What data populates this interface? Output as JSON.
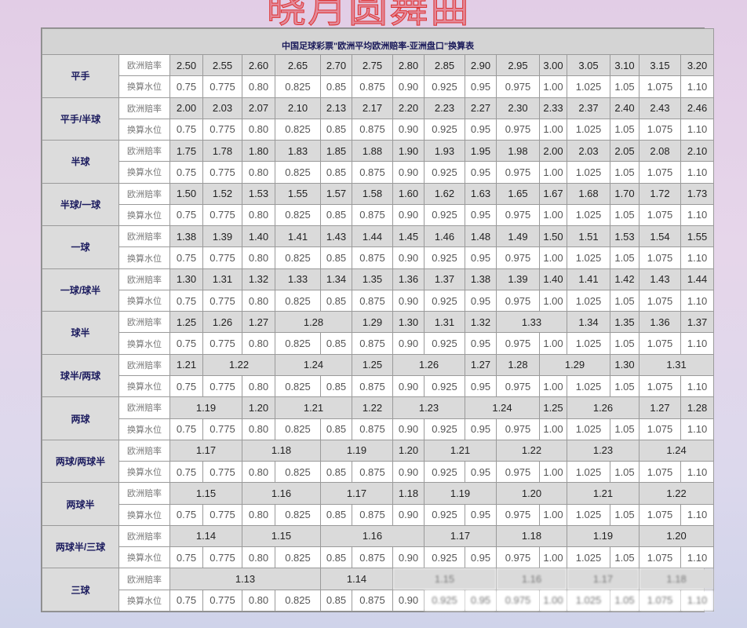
{
  "watermark": "晓月圆舞曲",
  "title": "中国足球彩票\"欧洲平均欧洲赔率-亚洲盘口\"换算表",
  "row_labels": {
    "odds": "欧洲赔率",
    "water": "换算水位"
  },
  "water_values": [
    "0.75",
    "0.775",
    "0.80",
    "0.825",
    "0.85",
    "0.875",
    "0.90",
    "0.925",
    "0.95",
    "0.975",
    "1.00",
    "1.025",
    "1.05",
    "1.075",
    "1.10"
  ],
  "groups": [
    {
      "handicap": "平手",
      "odds": [
        [
          "2.50",
          1
        ],
        [
          "2.55",
          1
        ],
        [
          "2.60",
          1
        ],
        [
          "2.65",
          1
        ],
        [
          "2.70",
          1
        ],
        [
          "2.75",
          1
        ],
        [
          "2.80",
          1
        ],
        [
          "2.85",
          1
        ],
        [
          "2.90",
          1
        ],
        [
          "2.95",
          1
        ],
        [
          "3.00",
          1
        ],
        [
          "3.05",
          1
        ],
        [
          "3.10",
          1
        ],
        [
          "3.15",
          1
        ],
        [
          "3.20",
          1
        ]
      ]
    },
    {
      "handicap": "平手/半球",
      "odds": [
        [
          "2.00",
          1
        ],
        [
          "2.03",
          1
        ],
        [
          "2.07",
          1
        ],
        [
          "2.10",
          1
        ],
        [
          "2.13",
          1
        ],
        [
          "2.17",
          1
        ],
        [
          "2.20",
          1
        ],
        [
          "2.23",
          1
        ],
        [
          "2.27",
          1
        ],
        [
          "2.30",
          1
        ],
        [
          "2.33",
          1
        ],
        [
          "2.37",
          1
        ],
        [
          "2.40",
          1
        ],
        [
          "2.43",
          1
        ],
        [
          "2.46",
          1
        ]
      ]
    },
    {
      "handicap": "半球",
      "odds": [
        [
          "1.75",
          1
        ],
        [
          "1.78",
          1
        ],
        [
          "1.80",
          1
        ],
        [
          "1.83",
          1
        ],
        [
          "1.85",
          1
        ],
        [
          "1.88",
          1
        ],
        [
          "1.90",
          1
        ],
        [
          "1.93",
          1
        ],
        [
          "1.95",
          1
        ],
        [
          "1.98",
          1
        ],
        [
          "2.00",
          1
        ],
        [
          "2.03",
          1
        ],
        [
          "2.05",
          1
        ],
        [
          "2.08",
          1
        ],
        [
          "2.10",
          1
        ]
      ]
    },
    {
      "handicap": "半球/一球",
      "odds": [
        [
          "1.50",
          1
        ],
        [
          "1.52",
          1
        ],
        [
          "1.53",
          1
        ],
        [
          "1.55",
          1
        ],
        [
          "1.57",
          1
        ],
        [
          "1.58",
          1
        ],
        [
          "1.60",
          1
        ],
        [
          "1.62",
          1
        ],
        [
          "1.63",
          1
        ],
        [
          "1.65",
          1
        ],
        [
          "1.67",
          1
        ],
        [
          "1.68",
          1
        ],
        [
          "1.70",
          1
        ],
        [
          "1.72",
          1
        ],
        [
          "1.73",
          1
        ]
      ]
    },
    {
      "handicap": "一球",
      "odds": [
        [
          "1.38",
          1
        ],
        [
          "1.39",
          1
        ],
        [
          "1.40",
          1
        ],
        [
          "1.41",
          1
        ],
        [
          "1.43",
          1
        ],
        [
          "1.44",
          1
        ],
        [
          "1.45",
          1
        ],
        [
          "1.46",
          1
        ],
        [
          "1.48",
          1
        ],
        [
          "1.49",
          1
        ],
        [
          "1.50",
          1
        ],
        [
          "1.51",
          1
        ],
        [
          "1.53",
          1
        ],
        [
          "1.54",
          1
        ],
        [
          "1.55",
          1
        ]
      ]
    },
    {
      "handicap": "一球/球半",
      "odds": [
        [
          "1.30",
          1
        ],
        [
          "1.31",
          1
        ],
        [
          "1.32",
          1
        ],
        [
          "1.33",
          1
        ],
        [
          "1.34",
          1
        ],
        [
          "1.35",
          1
        ],
        [
          "1.36",
          1
        ],
        [
          "1.37",
          1
        ],
        [
          "1.38",
          1
        ],
        [
          "1.39",
          1
        ],
        [
          "1.40",
          1
        ],
        [
          "1.41",
          1
        ],
        [
          "1.42",
          1
        ],
        [
          "1.43",
          1
        ],
        [
          "1.44",
          1
        ]
      ]
    },
    {
      "handicap": "球半",
      "odds": [
        [
          "1.25",
          1
        ],
        [
          "1.26",
          1
        ],
        [
          "1.27",
          1
        ],
        [
          "1.28",
          2
        ],
        [
          "1.29",
          1
        ],
        [
          "1.30",
          1
        ],
        [
          "1.31",
          1
        ],
        [
          "1.32",
          1
        ],
        [
          "1.33",
          2
        ],
        [
          "1.34",
          1
        ],
        [
          "1.35",
          1
        ],
        [
          "1.36",
          1
        ],
        [
          "1.37",
          1
        ]
      ]
    },
    {
      "handicap": "球半/两球",
      "odds": [
        [
          "1.21",
          1
        ],
        [
          "1.22",
          2
        ],
        [
          "1.24",
          2
        ],
        [
          "1.25",
          1
        ],
        [
          "1.26",
          2
        ],
        [
          "1.27",
          1
        ],
        [
          "1.28",
          1
        ],
        [
          "1.29",
          2
        ],
        [
          "1.30",
          1
        ],
        [
          "1.31",
          2
        ]
      ]
    },
    {
      "handicap": "两球",
      "odds": [
        [
          "1.19",
          2
        ],
        [
          "1.20",
          1
        ],
        [
          "1.21",
          2
        ],
        [
          "1.22",
          1
        ],
        [
          "1.23",
          2
        ],
        [
          "1.24",
          2
        ],
        [
          "1.25",
          1
        ],
        [
          "1.26",
          2
        ],
        [
          "1.27",
          1
        ],
        [
          "1.28",
          1
        ]
      ]
    },
    {
      "handicap": "两球/两球半",
      "odds": [
        [
          "1.17",
          2
        ],
        [
          "1.18",
          2
        ],
        [
          "1.19",
          2
        ],
        [
          "1.20",
          1
        ],
        [
          "1.21",
          2
        ],
        [
          "1.22",
          2
        ],
        [
          "1.23",
          2
        ],
        [
          "1.24",
          2
        ]
      ]
    },
    {
      "handicap": "两球半",
      "odds": [
        [
          "1.15",
          2
        ],
        [
          "1.16",
          2
        ],
        [
          "1.17",
          2
        ],
        [
          "1.18",
          1
        ],
        [
          "1.19",
          2
        ],
        [
          "1.20",
          2
        ],
        [
          "1.21",
          2
        ],
        [
          "1.22",
          2
        ]
      ]
    },
    {
      "handicap": "两球半/三球",
      "odds": [
        [
          "1.14",
          2
        ],
        [
          "1.15",
          2
        ],
        [
          "1.16",
          3
        ],
        [
          "1.17",
          2
        ],
        [
          "1.18",
          2
        ],
        [
          "1.19",
          2
        ],
        [
          "1.20",
          2
        ]
      ]
    },
    {
      "handicap": "三球",
      "odds": [
        [
          "1.13",
          4
        ],
        [
          "1.14",
          2
        ],
        [
          "1.15",
          3
        ],
        [
          "1.16",
          2
        ],
        [
          "1.17",
          2
        ],
        [
          "1.18",
          2
        ]
      ],
      "blurred_from": 2
    }
  ]
}
